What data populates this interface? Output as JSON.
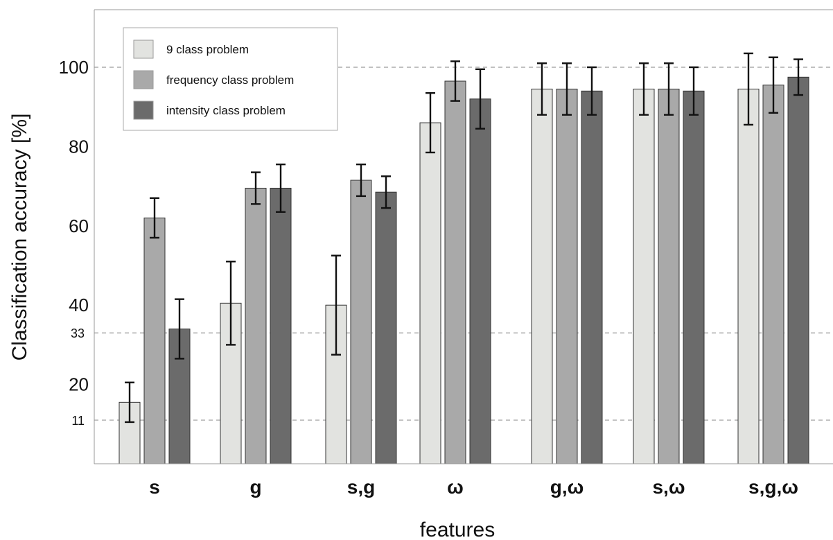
{
  "chart_data": {
    "type": "bar",
    "title": "",
    "xlabel": "features",
    "ylabel": "Classification accuracy [%]",
    "ylim": [
      0,
      115
    ],
    "yticks": [
      20,
      40,
      60,
      80,
      100
    ],
    "yticks_minor": [
      11,
      33
    ],
    "reference_lines": [
      11,
      33,
      100
    ],
    "categories": [
      "s",
      "g",
      "s,g",
      "ω",
      "g,ω",
      "s,ω",
      "s,g,ω"
    ],
    "series": [
      {
        "name": "9 class problem",
        "color": "#e2e3e0",
        "values": [
          15.5,
          40.5,
          40,
          86,
          94.5,
          94.5,
          94.5
        ],
        "errors": [
          5,
          10.5,
          12.5,
          7.5,
          6.5,
          6.5,
          9
        ]
      },
      {
        "name": "frequency class problem",
        "color": "#a9a9a9",
        "values": [
          62,
          69.5,
          71.5,
          96.5,
          94.5,
          94.5,
          95.5
        ],
        "errors": [
          5,
          4,
          4,
          5,
          6.5,
          6.5,
          7
        ]
      },
      {
        "name": "intensity class problem",
        "color": "#6b6b6b",
        "values": [
          34,
          69.5,
          68.5,
          92,
          94,
          94,
          97.5
        ],
        "errors": [
          7.5,
          6,
          4,
          7.5,
          6,
          6,
          4.5
        ]
      }
    ],
    "grid": false,
    "legend_position": "top-left"
  }
}
